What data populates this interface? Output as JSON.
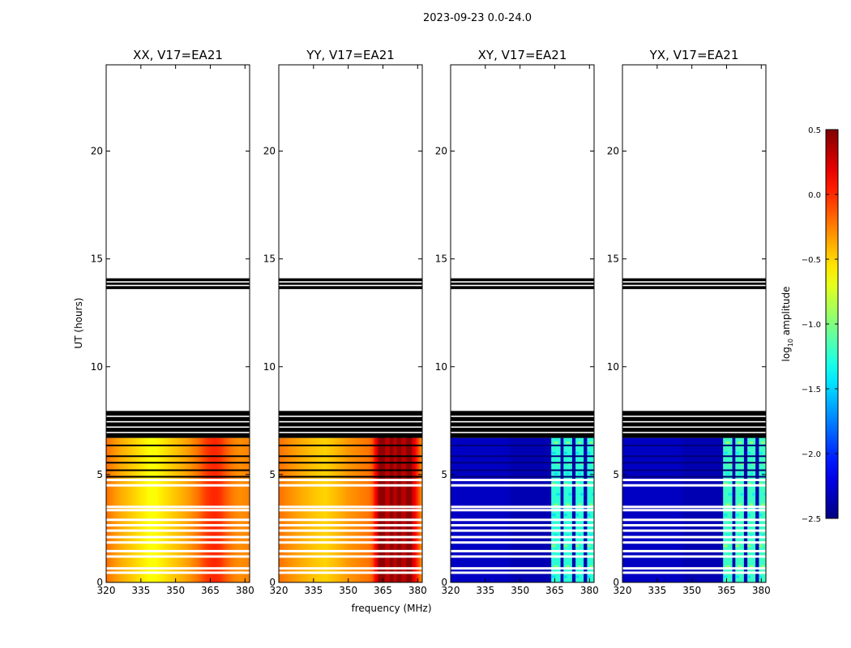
{
  "chart_data": {
    "type": "heatmap",
    "suptitle": "2023-09-23 0.0-24.0",
    "xlabel": "frequency (MHz)",
    "ylabel": "UT (hours)",
    "xlim": [
      320,
      382
    ],
    "ylim": [
      0,
      24
    ],
    "xticks": [
      320,
      335,
      350,
      365,
      380
    ],
    "yticks": [
      0,
      5,
      10,
      15,
      20
    ],
    "colorbar": {
      "label_main": "log",
      "label_sub": "10",
      "label_rest": " amplitude",
      "range": [
        -2.5,
        0.5
      ],
      "ticks": [
        0.5,
        0.0,
        -0.5,
        -1.0,
        -1.5,
        -2.0,
        -2.5
      ],
      "tick_labels": [
        "0.5",
        "0.0",
        "−0.5",
        "−1.0",
        "−1.5",
        "−2.0",
        "−2.5"
      ],
      "colormap": "jet"
    },
    "data_bands_hours": [
      [
        0,
        6.7
      ]
    ],
    "flagged_bands_hours": [
      [
        6.7,
        7.95
      ],
      [
        13.6,
        14.1
      ]
    ],
    "gap_lines_hours": [
      0.45,
      0.65,
      1.2,
      1.45,
      1.85,
      2.1,
      2.4,
      2.65,
      2.9,
      3.35,
      3.5,
      4.5,
      4.75
    ],
    "dark_lines_hours": [
      4.9,
      5.2,
      5.55,
      5.85,
      6.35
    ],
    "panels": [
      {
        "title": "XX, V17=EA21",
        "kind": "auto",
        "profile_x": [
          320,
          325,
          330,
          335,
          340,
          345,
          350,
          355,
          360,
          363,
          366,
          369,
          372,
          375,
          378,
          382
        ],
        "profile_log10_amp": [
          -0.2,
          -0.35,
          -0.45,
          -0.55,
          -0.65,
          -0.55,
          -0.45,
          -0.35,
          -0.2,
          -0.05,
          0.02,
          0.0,
          -0.15,
          -0.25,
          -0.3,
          -0.25
        ]
      },
      {
        "title": "YY, V17=EA21",
        "kind": "auto",
        "profile_x": [
          320,
          325,
          330,
          335,
          340,
          345,
          350,
          355,
          360,
          363,
          366,
          369,
          372,
          375,
          378,
          382
        ],
        "profile_log10_amp": [
          -0.2,
          -0.3,
          -0.38,
          -0.45,
          -0.5,
          -0.42,
          -0.32,
          -0.26,
          -0.2,
          0.35,
          0.3,
          0.35,
          0.3,
          0.35,
          0.3,
          -0.35
        ],
        "hot_columns_mhz": [
          [
            363,
            366
          ],
          [
            368,
            369.5
          ],
          [
            371,
            373
          ],
          [
            375,
            377.5
          ]
        ]
      },
      {
        "title": "XY, V17=EA21",
        "kind": "cross",
        "background_log10_amp": -2.35,
        "bright_columns_mhz": [
          [
            363.5,
            367.5
          ],
          [
            368.8,
            372.5
          ],
          [
            374,
            377.5
          ],
          [
            379,
            382.5
          ]
        ],
        "bright_log10_amp": -1.25
      },
      {
        "title": "YX, V17=EA21",
        "kind": "cross",
        "background_log10_amp": -2.35,
        "bright_columns_mhz": [
          [
            363.5,
            367.5
          ],
          [
            368.8,
            372.5
          ],
          [
            374,
            377.5
          ],
          [
            379,
            382.5
          ]
        ],
        "bright_log10_amp": -1.2
      }
    ]
  }
}
